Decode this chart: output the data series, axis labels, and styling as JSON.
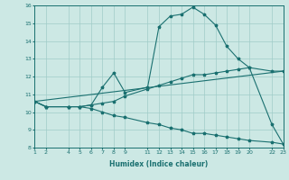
{
  "xlabel": "Humidex (Indice chaleur)",
  "bg_color": "#cce8e4",
  "grid_color": "#a0ccc8",
  "line_color": "#1a7070",
  "xlim": [
    1,
    23
  ],
  "ylim": [
    8,
    16
  ],
  "xticks": [
    1,
    2,
    4,
    5,
    6,
    7,
    8,
    9,
    11,
    12,
    13,
    14,
    15,
    16,
    17,
    18,
    19,
    20,
    22,
    23
  ],
  "yticks": [
    8,
    9,
    10,
    11,
    12,
    13,
    14,
    15,
    16
  ],
  "line1_x": [
    1,
    2,
    4,
    5,
    6,
    7,
    8,
    9,
    11,
    12,
    13,
    14,
    15,
    16,
    17,
    18,
    19,
    20,
    22,
    23
  ],
  "line1_y": [
    10.6,
    10.3,
    10.3,
    10.3,
    10.4,
    11.4,
    12.2,
    11.1,
    11.4,
    14.8,
    15.4,
    15.5,
    15.9,
    15.5,
    14.9,
    13.7,
    13.0,
    12.5,
    9.3,
    8.2
  ],
  "line2_x": [
    1,
    2,
    4,
    5,
    6,
    7,
    8,
    9,
    11,
    12,
    13,
    14,
    15,
    16,
    17,
    18,
    19,
    20,
    22,
    23
  ],
  "line2_y": [
    10.6,
    10.3,
    10.3,
    10.3,
    10.4,
    10.5,
    10.6,
    10.9,
    11.3,
    11.5,
    11.7,
    11.9,
    12.1,
    12.1,
    12.2,
    12.3,
    12.4,
    12.5,
    12.3,
    12.3
  ],
  "line3_x": [
    1,
    23
  ],
  "line3_y": [
    10.6,
    12.3
  ],
  "line4_x": [
    1,
    2,
    4,
    5,
    6,
    7,
    8,
    9,
    11,
    12,
    13,
    14,
    15,
    16,
    17,
    18,
    19,
    20,
    22,
    23
  ],
  "line4_y": [
    10.6,
    10.3,
    10.3,
    10.3,
    10.2,
    10.0,
    9.8,
    9.7,
    9.4,
    9.3,
    9.1,
    9.0,
    8.8,
    8.8,
    8.7,
    8.6,
    8.5,
    8.4,
    8.3,
    8.2
  ],
  "xlabel_fontsize": 5.5,
  "tick_fontsize": 4.5,
  "linewidth": 0.8,
  "markersize": 2.5
}
